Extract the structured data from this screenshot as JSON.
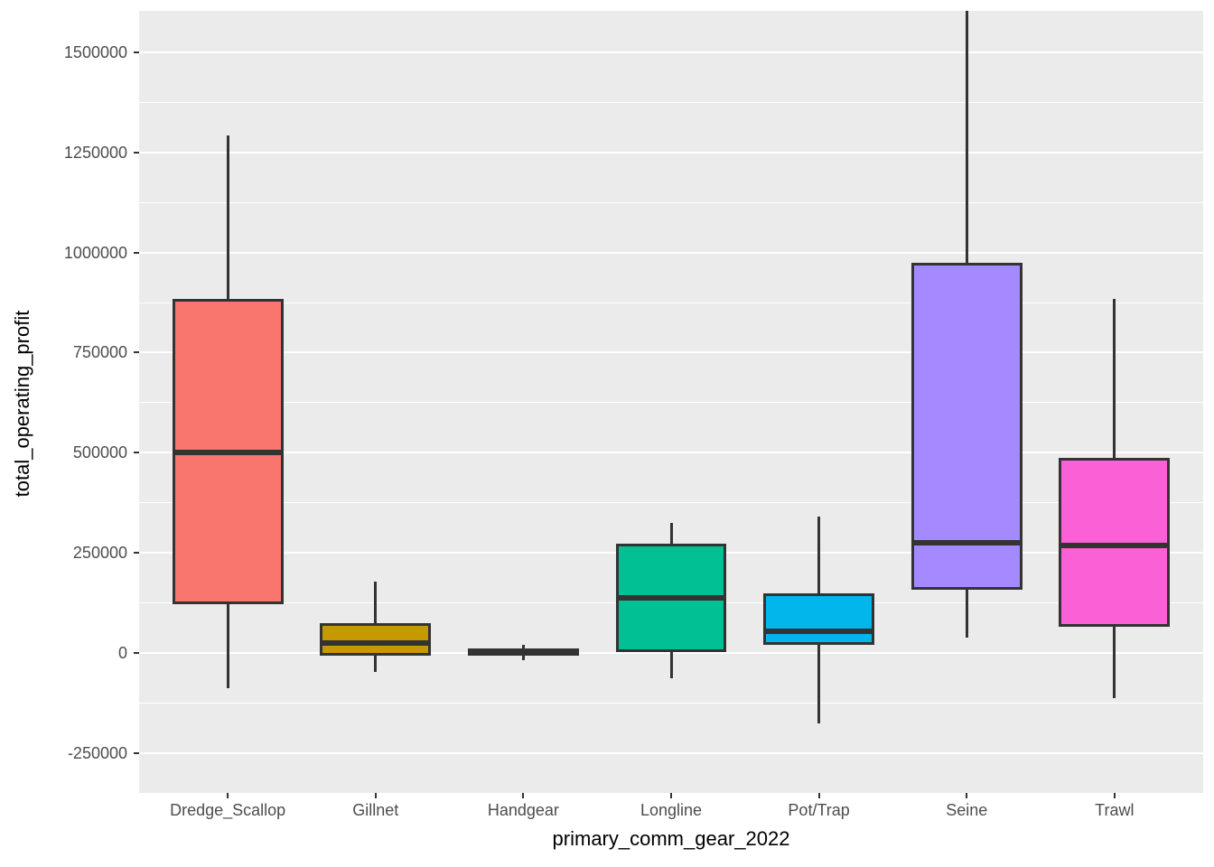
{
  "style": {
    "background": "#FFFFFF",
    "panel_bg": "#EBEBEB",
    "grid_color": "#FFFFFF",
    "box_border_color": "#333333",
    "tick_label_color": "#4D4D4D",
    "axis_title_color": "#000000"
  },
  "chart_data": {
    "type": "boxplot",
    "title": "",
    "xlabel": "primary_comm_gear_2022",
    "ylabel": "total_operating_profit",
    "categories": [
      "Dredge_Scallop",
      "Gillnet",
      "Handgear",
      "Longline",
      "Pot/Trap",
      "Seine",
      "Trawl"
    ],
    "series": [
      {
        "name": "Dredge_Scallop",
        "color": "#F8766D",
        "whisker_low": -88000,
        "q1": 122000,
        "median": 500000,
        "q3": 885000,
        "whisker_high": 1293000
      },
      {
        "name": "Gillnet",
        "color": "#C49A00",
        "whisker_low": -47000,
        "q1": -7000,
        "median": 25000,
        "q3": 75000,
        "whisker_high": 178000
      },
      {
        "name": "Handgear",
        "color": "#53B400",
        "whisker_low": -19000,
        "q1": -8000,
        "median": 2000,
        "q3": 10000,
        "whisker_high": 20000
      },
      {
        "name": "Longline",
        "color": "#00C094",
        "whisker_low": -63000,
        "q1": 2000,
        "median": 138000,
        "q3": 273000,
        "whisker_high": 325000
      },
      {
        "name": "Pot/Trap",
        "color": "#00B6EB",
        "whisker_low": -176000,
        "q1": 20000,
        "median": 55000,
        "q3": 149000,
        "whisker_high": 340000
      },
      {
        "name": "Seine",
        "color": "#A58AFF",
        "whisker_low": 38000,
        "q1": 158000,
        "median": 275000,
        "q3": 975000,
        "whisker_high": 1604000
      },
      {
        "name": "Trawl",
        "color": "#FB61D7",
        "whisker_low": -113000,
        "q1": 65000,
        "median": 268000,
        "q3": 487000,
        "whisker_high": 885000
      }
    ],
    "ylim": [
      -350000,
      1604000
    ],
    "y_ticks": [
      {
        "value": -250000,
        "label": "-250000"
      },
      {
        "value": 0,
        "label": "0"
      },
      {
        "value": 250000,
        "label": "250000"
      },
      {
        "value": 500000,
        "label": "500000"
      },
      {
        "value": 750000,
        "label": "750000"
      },
      {
        "value": 1000000,
        "label": "1000000"
      },
      {
        "value": 1250000,
        "label": "1250000"
      },
      {
        "value": 1500000,
        "label": "1500000"
      }
    ],
    "y_minor_ticks": [
      -125000,
      125000,
      375000,
      625000,
      875000,
      1125000,
      1375000
    ],
    "legend": "none",
    "grid": "on"
  }
}
